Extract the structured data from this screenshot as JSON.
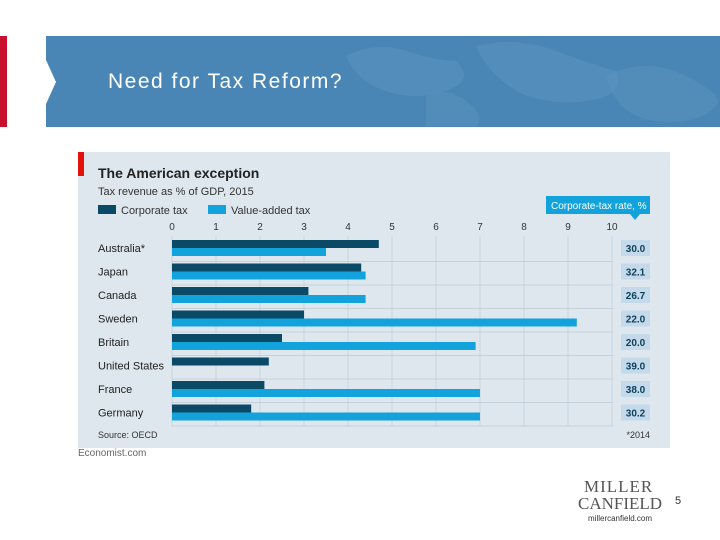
{
  "slide": {
    "title": "Need for Tax Reform?",
    "page_number": "5",
    "logo_line1": "MILLER",
    "logo_line2": "CANFIELD",
    "logo_url": "millercanfield.com",
    "source_credit": "Economist.com"
  },
  "colors": {
    "accent_red": "#c8102e",
    "header_blue": "#4a86b5",
    "corporate_tax": "#0b4a66",
    "value_added_tax": "#12a3dc",
    "red_mark": "#e3120b",
    "chart_bg": "#dde7ed"
  },
  "chart_data": {
    "type": "bar",
    "orientation": "horizontal",
    "title": "The American exception",
    "subtitle": "Tax revenue as % of GDP, 2015",
    "categories": [
      "Australia*",
      "Japan",
      "Canada",
      "Sweden",
      "Britain",
      "United States",
      "France",
      "Germany"
    ],
    "series": [
      {
        "name": "Corporate tax",
        "values": [
          4.7,
          4.3,
          3.1,
          3.0,
          2.5,
          2.2,
          2.1,
          1.8
        ]
      },
      {
        "name": "Value-added tax",
        "values": [
          3.5,
          4.4,
          4.4,
          9.2,
          6.9,
          0,
          7.0,
          7.0
        ]
      }
    ],
    "xlim": [
      0,
      10
    ],
    "xticks": [
      "0",
      "1",
      "2",
      "3",
      "4",
      "5",
      "6",
      "7",
      "8",
      "9",
      "10"
    ],
    "side_column": {
      "label": "Corporate-tax rate, %",
      "values": [
        "30.0",
        "32.1",
        "26.7",
        "22.0",
        "20.0",
        "39.0",
        "38.0",
        "30.2"
      ]
    },
    "source": "Source: OECD",
    "footnote": "*2014",
    "legend_position": "top-left"
  }
}
